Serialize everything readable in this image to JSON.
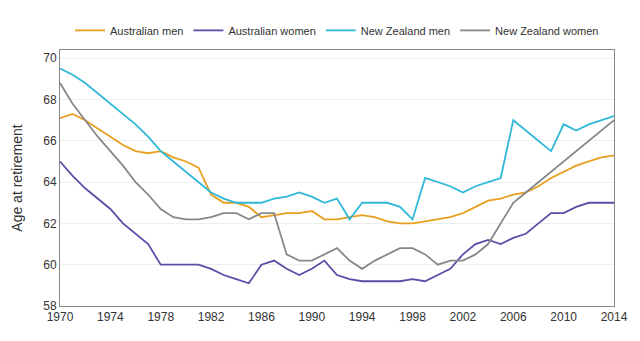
{
  "chart_data": {
    "type": "line",
    "y_label": "Age at retirement",
    "x": [
      1970,
      1971,
      1972,
      1973,
      1974,
      1975,
      1976,
      1977,
      1978,
      1979,
      1980,
      1981,
      1982,
      1983,
      1984,
      1985,
      1986,
      1987,
      1988,
      1989,
      1990,
      1991,
      1992,
      1993,
      1994,
      1995,
      1996,
      1997,
      1998,
      1999,
      2000,
      2001,
      2002,
      2003,
      2004,
      2005,
      2006,
      2007,
      2008,
      2009,
      2010,
      2011,
      2012,
      2013,
      2014
    ],
    "series": [
      {
        "name": "Australian men",
        "color": "#E8A020",
        "values": [
          67.1,
          67.3,
          67.0,
          66.6,
          66.2,
          65.8,
          65.5,
          65.4,
          65.5,
          65.2,
          65.0,
          64.7,
          63.4,
          63.0,
          63.0,
          62.8,
          62.3,
          62.4,
          62.5,
          62.5,
          62.6,
          62.2,
          62.2,
          62.3,
          62.4,
          62.3,
          62.1,
          62.0,
          62.0,
          62.1,
          62.2,
          62.3,
          62.5,
          62.8,
          63.1,
          63.2,
          63.4,
          63.5,
          63.8,
          64.2,
          64.5,
          64.8,
          65.0,
          65.2,
          65.3
        ]
      },
      {
        "name": "Australian women",
        "color": "#5B4EA8",
        "values": [
          65.0,
          64.3,
          63.7,
          63.2,
          62.7,
          62.0,
          61.5,
          61.0,
          60.0,
          60.0,
          60.0,
          60.0,
          59.8,
          59.5,
          59.3,
          59.1,
          60.0,
          60.2,
          59.8,
          59.5,
          59.8,
          60.2,
          59.5,
          59.3,
          59.2,
          59.2,
          59.2,
          59.2,
          59.3,
          59.2,
          59.5,
          59.8,
          60.5,
          61.0,
          61.2,
          61.0,
          61.3,
          61.5,
          62.0,
          62.5,
          62.5,
          62.8,
          63.0,
          63.0,
          63.0
        ]
      },
      {
        "name": "New Zealand men",
        "color": "#30B8D8",
        "values": [
          69.5,
          69.2,
          68.8,
          68.3,
          67.8,
          67.3,
          66.8,
          66.2,
          65.5,
          65.0,
          64.5,
          64.0,
          63.5,
          63.2,
          63.0,
          63.0,
          63.0,
          63.2,
          63.3,
          63.5,
          63.3,
          63.0,
          63.2,
          62.2,
          63.0,
          63.0,
          63.0,
          62.8,
          62.2,
          64.2,
          64.0,
          63.8,
          63.5,
          63.8,
          64.0,
          64.2,
          67.0,
          66.5,
          66.0,
          65.5,
          66.8,
          66.5,
          66.8,
          67.0,
          67.2
        ]
      },
      {
        "name": "New Zealand women",
        "color": "#888888",
        "values": [
          68.8,
          67.8,
          67.0,
          66.2,
          65.5,
          64.8,
          64.0,
          63.4,
          62.7,
          62.3,
          62.2,
          62.2,
          62.3,
          62.5,
          62.5,
          62.2,
          62.5,
          62.5,
          60.5,
          60.2,
          60.2,
          60.5,
          60.8,
          60.2,
          59.8,
          60.2,
          60.5,
          60.8,
          60.8,
          60.5,
          60.0,
          60.2,
          60.2,
          60.5,
          61.0,
          62.0,
          63.0,
          63.5,
          64.0,
          64.5,
          65.0,
          65.5,
          66.0,
          66.5,
          67.0
        ]
      }
    ],
    "xlim": [
      1970,
      2014
    ],
    "xticks": [
      1970,
      1974,
      1978,
      1982,
      1986,
      1990,
      1994,
      1998,
      2002,
      2006,
      2010,
      2014
    ],
    "ylim": [
      58,
      70.4
    ],
    "yticks": [
      58,
      60,
      62,
      64,
      66,
      68,
      70
    ],
    "grid": true,
    "legend": "top"
  }
}
